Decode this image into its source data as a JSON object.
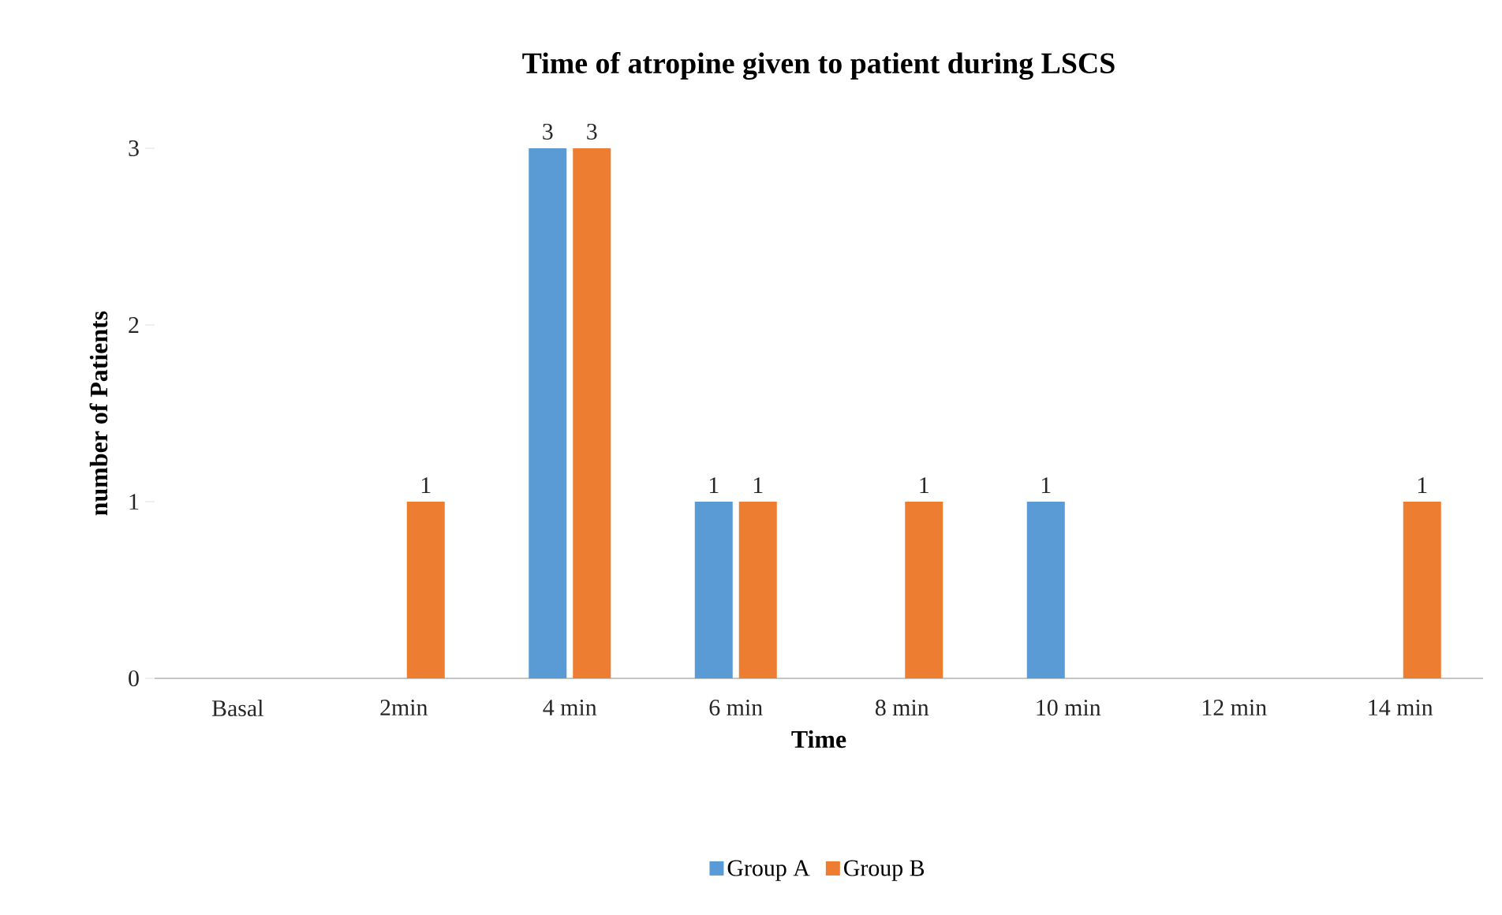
{
  "chart_data": {
    "type": "bar",
    "title": "Time of atropine given to patient during LSCS",
    "xlabel": "Time",
    "ylabel": "number of Patients",
    "categories": [
      "Basal",
      "2min",
      "4 min",
      "6 min",
      "8 min",
      "10 min",
      "12 min",
      "14 min"
    ],
    "series": [
      {
        "name": "Group A",
        "color": "#5b9bd5",
        "values": [
          0,
          0,
          3,
          1,
          0,
          1,
          0,
          0
        ],
        "value_labels": [
          null,
          null,
          "3",
          "1",
          null,
          "1",
          null,
          null
        ]
      },
      {
        "name": "Group B",
        "color": "#ed7d31",
        "values": [
          0,
          1,
          3,
          1,
          1,
          0,
          0,
          1
        ],
        "value_labels": [
          null,
          "1",
          "3",
          "1",
          "1",
          null,
          null,
          "1"
        ]
      }
    ],
    "ylim": [
      0,
      3
    ],
    "yticks": [
      0,
      1,
      2,
      3
    ],
    "legend": "bottom"
  }
}
